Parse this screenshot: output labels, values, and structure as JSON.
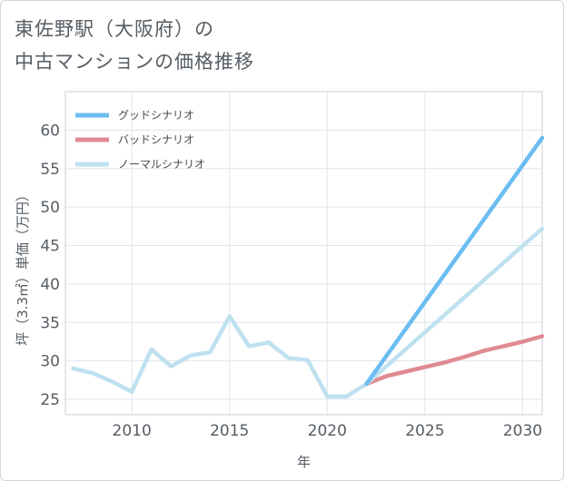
{
  "chart_data": {
    "type": "line",
    "title_line1": "東佐野駅（大阪府）の",
    "title_line2": "中古マンションの価格推移",
    "xlabel": "年",
    "ylabel": "坪（3.3㎡）単価（万円）",
    "xlim": [
      2006.6,
      2031
    ],
    "ylim": [
      23,
      65
    ],
    "x_ticks": [
      2010,
      2015,
      2020,
      2025,
      2030
    ],
    "y_ticks": [
      25,
      30,
      35,
      40,
      45,
      50,
      55,
      60
    ],
    "legend_position": "top-left",
    "series": [
      {
        "name": "グッドシナリオ",
        "color": "#6bbdf0",
        "x": [
          2022,
          2031
        ],
        "values": [
          27.0,
          59.0
        ]
      },
      {
        "name": "バッドシナリオ",
        "color": "#e08a92",
        "x": [
          2022,
          2023,
          2024,
          2025,
          2026,
          2027,
          2028,
          2029,
          2030,
          2031
        ],
        "values": [
          27.0,
          28.0,
          28.6,
          29.2,
          29.8,
          30.5,
          31.3,
          31.9,
          32.5,
          33.2
        ]
      },
      {
        "name": "ノーマルシナリオ",
        "color": "#bfe1ef",
        "x": [
          2007,
          2008,
          2009,
          2010,
          2011,
          2012,
          2013,
          2014,
          2015,
          2016,
          2017,
          2018,
          2019,
          2020,
          2021,
          2022,
          2031
        ],
        "values": [
          29.0,
          28.4,
          27.3,
          26.0,
          31.5,
          29.3,
          30.7,
          31.1,
          35.8,
          31.9,
          32.4,
          30.4,
          30.1,
          25.4,
          25.4,
          27.0,
          47.2
        ]
      }
    ]
  }
}
